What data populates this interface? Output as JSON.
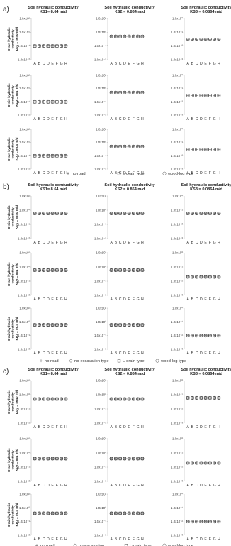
{
  "row_titles": [
    {
      "line1": "Drain hydraulic",
      "line2": "conductivity",
      "line3": "KD1 = 8640 m/d"
    },
    {
      "line1": "Drain hydraulic",
      "line2": "conductivity",
      "line3": "KD2 = 864 m/d"
    },
    {
      "line1": "Drain hydraulic",
      "line2": "conductivity",
      "line3": "KD3 = 86.4 m/d"
    }
  ],
  "col_titles": [
    {
      "line1": "Soil hydraulic conductivity",
      "line2": "KS1= 8.64 m/d"
    },
    {
      "line1": "Soil hydraulic conductivity",
      "line2": "KS2 = 0.864 m/d"
    },
    {
      "line1": "Soil hydraulic conductivity",
      "line2": "KS3 = 0.0864 m/d"
    }
  ],
  "legend_labels": {
    "no_road": "no road",
    "no_excavation": "no-excavation type",
    "no_excavation_short": "no-excavation",
    "l_drain": "L-drain type",
    "wood_log": "wood-log type"
  },
  "chart_data": {
    "type": "scatter",
    "categories": [
      "A",
      "B",
      "C",
      "D",
      "E",
      "F",
      "G",
      "H"
    ],
    "y_scale": "log",
    "y_tick_labels": [
      "1.0x10⁻²",
      "1.0x10⁻¹",
      "1.0x10⁰",
      "1.0x10¹"
    ],
    "panels": [
      {
        "label": "a)",
        "legend": [
          "no_road",
          "l_drain",
          "wood_log"
        ],
        "y_tick_labels": [
          [
            "1.0x10⁻²",
            "1.0x10⁻¹",
            "1.0x10⁰",
            "1.0x10¹"
          ],
          [
            "1.0x10⁻²",
            "1.0x10⁻¹",
            "1.0x10⁰",
            "1.0x10¹"
          ],
          [
            "1.0x10⁻³",
            "1.0x10⁻²",
            "1.0x10⁻¹",
            "1.0x10⁰"
          ]
        ],
        "y_exponent_ranges": [
          [
            [
              -2,
              1
            ],
            [
              -2,
              1
            ],
            [
              -3,
              0
            ]
          ],
          [
            [
              -2,
              1
            ],
            [
              -2,
              1
            ],
            [
              -3,
              0
            ]
          ],
          [
            [
              -2,
              1
            ],
            [
              -2,
              1
            ],
            [
              -3,
              0
            ]
          ]
        ],
        "series": [
          {
            "symbol": "cross",
            "grid": [
              [
                0.1,
                0.5,
                0.03
              ],
              [
                0.1,
                0.5,
                0.03
              ],
              [
                0.1,
                0.5,
                0.03
              ]
            ]
          },
          {
            "symbol": "square",
            "grid": [
              [
                0.1,
                0.5,
                0.03
              ],
              [
                0.1,
                0.5,
                0.03
              ],
              [
                0.1,
                0.5,
                0.03
              ]
            ]
          },
          {
            "symbol": "circle",
            "grid": [
              [
                0.1,
                0.5,
                0.03
              ],
              [
                0.1,
                0.5,
                0.03
              ],
              [
                0.1,
                0.5,
                0.03
              ]
            ]
          }
        ]
      },
      {
        "label": "b)",
        "legend": [
          "no_road",
          "no_excavation",
          "l_drain",
          "wood_log"
        ],
        "y_tick_labels": [
          [
            "1.0x10⁻²",
            "1.0x10⁻¹",
            "1.0x10⁰",
            "1.0x10¹"
          ],
          [
            "1.0x10⁻²",
            "1.0x10⁻¹",
            "1.0x10⁰",
            "1.0x10¹"
          ],
          [
            "1.0x10⁻³",
            "1.0x10⁻²",
            "1.0x10⁻¹",
            "1.0x10⁰"
          ]
        ],
        "y_exponent_ranges": [
          [
            [
              -2,
              1
            ],
            [
              -2,
              1
            ],
            [
              -3,
              0
            ]
          ],
          [
            [
              -2,
              1
            ],
            [
              -2,
              1
            ],
            [
              -3,
              0
            ]
          ],
          [
            [
              -2,
              1
            ],
            [
              -2,
              1
            ],
            [
              -3,
              0
            ]
          ]
        ],
        "series": [
          {
            "symbol": "cross",
            "grid": [
              [
                0.6,
                0.6,
                0.06
              ],
              [
                0.6,
                0.6,
                0.02
              ],
              [
                0.6,
                0.6,
                0.01
              ]
            ]
          },
          {
            "symbol": "diamond",
            "grid": [
              [
                0.6,
                0.6,
                0.06
              ],
              [
                0.6,
                0.6,
                0.02
              ],
              [
                0.6,
                0.6,
                0.01
              ]
            ]
          },
          {
            "symbol": "square",
            "grid": [
              [
                0.6,
                0.6,
                0.06
              ],
              [
                0.6,
                0.6,
                0.02
              ],
              [
                0.6,
                0.6,
                0.01
              ]
            ]
          },
          {
            "symbol": "circle",
            "grid": [
              [
                0.6,
                0.6,
                0.06
              ],
              [
                0.6,
                0.6,
                0.02
              ],
              [
                0.6,
                0.6,
                0.01
              ]
            ]
          }
        ]
      },
      {
        "label": "c)",
        "legend": [
          "no_road",
          "no_excavation_short",
          "l_drain",
          "wood_log"
        ],
        "y_tick_labels": [
          [
            "1.0x10⁻²",
            "1.0x10⁻¹",
            "1.0x10⁰",
            "1.0x10¹"
          ],
          [
            "1.0x10⁻²",
            "1.0x10⁻¹",
            "1.0x10⁰",
            "1.0x10¹"
          ],
          [
            "1.0x10⁻³",
            "1.0x10⁻²",
            "1.0x10⁻¹",
            "1.0x10⁰"
          ]
        ],
        "y_exponent_ranges": [
          [
            [
              -2,
              1
            ],
            [
              -2,
              1
            ],
            [
              -3,
              0
            ]
          ],
          [
            [
              -2,
              1
            ],
            [
              -2,
              1
            ],
            [
              -3,
              0
            ]
          ],
          [
            [
              -2,
              1
            ],
            [
              -2,
              1
            ],
            [
              -3,
              0
            ]
          ]
        ],
        "series": [
          {
            "symbol": "cross",
            "grid": [
              [
                0.5,
                0.5,
                0.06
              ],
              [
                0.4,
                0.4,
                0.02
              ],
              [
                0.4,
                0.4,
                0.01
              ]
            ]
          },
          {
            "symbol": "diamond",
            "grid": [
              [
                0.5,
                0.5,
                0.06
              ],
              [
                0.4,
                0.4,
                0.02
              ],
              [
                0.4,
                0.4,
                0.01
              ]
            ]
          },
          {
            "symbol": "square",
            "grid": [
              [
                0.5,
                0.5,
                0.06
              ],
              [
                0.4,
                0.4,
                0.02
              ],
              [
                0.4,
                0.4,
                0.01
              ]
            ]
          },
          {
            "symbol": "circle",
            "grid": [
              [
                0.5,
                0.5,
                0.06
              ],
              [
                0.4,
                0.4,
                0.02
              ],
              [
                0.4,
                0.4,
                0.01
              ]
            ]
          }
        ]
      }
    ]
  }
}
